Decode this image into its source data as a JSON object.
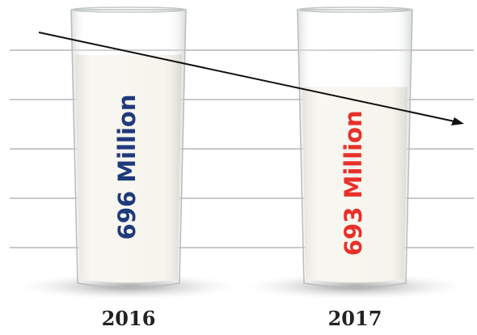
{
  "chart_data": {
    "type": "bar",
    "categories": [
      "2016",
      "2017"
    ],
    "values": [
      696,
      693
    ],
    "value_labels": [
      "696 Million",
      "693 Million"
    ],
    "label_colors": [
      "#1f3a7a",
      "#e8302a"
    ],
    "color": "#f3f1e8",
    "ylim": [
      675,
      700
    ]
  }
}
